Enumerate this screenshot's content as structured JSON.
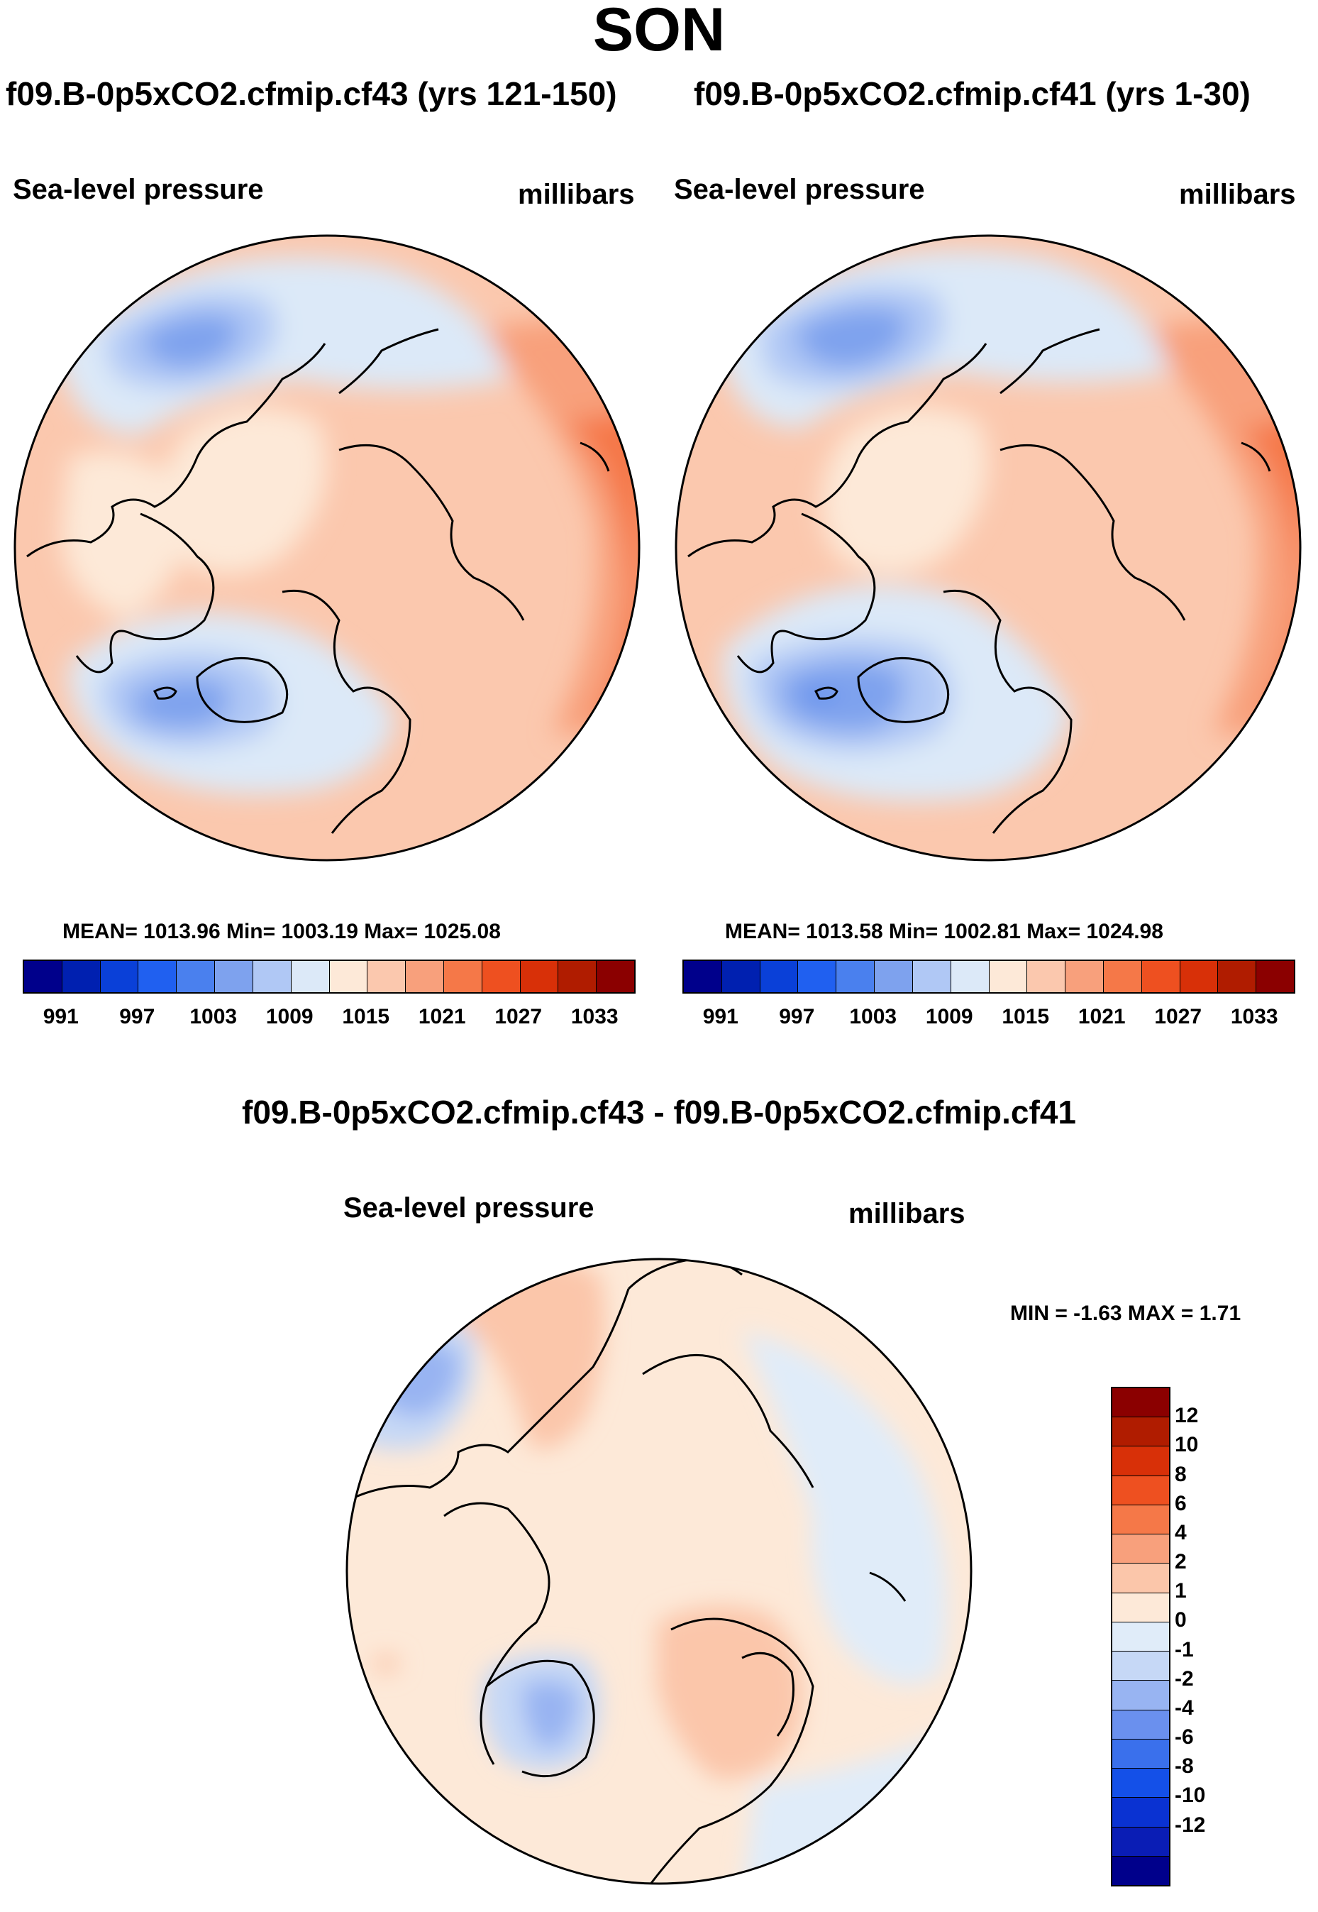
{
  "page": {
    "title": "SON"
  },
  "panels": [
    {
      "case_title": "f09.B-0p5xCO2.cfmip.cf43 (yrs 121-150)",
      "variable": "Sea-level pressure",
      "units": "millibars",
      "stats": "MEAN= 1013.96  Min= 1003.19  Max= 1025.08"
    },
    {
      "case_title": "f09.B-0p5xCO2.cfmip.cf41 (yrs 1-30)",
      "variable": "Sea-level pressure",
      "units": "millibars",
      "stats": "MEAN= 1013.58  Min= 1002.81  Max= 1024.98"
    }
  ],
  "diff_panel": {
    "case_title": "f09.B-0p5xCO2.cfmip.cf43 - f09.B-0p5xCO2.cfmip.cf41",
    "variable": "Sea-level pressure",
    "units": "millibars",
    "stats": "MIN =  -1.63 MAX =   1.71"
  },
  "colorbar_abs": {
    "colors": [
      "#00008b",
      "#0020b0",
      "#0a40d8",
      "#2060f0",
      "#4a80ee",
      "#7ea2ee",
      "#b0c8f5",
      "#dce9f8",
      "#fde9d8",
      "#fbc8ae",
      "#f8a07c",
      "#f57848",
      "#ee5020",
      "#d83008",
      "#b01c00",
      "#8b0000"
    ],
    "labels": [
      "991",
      "997",
      "1003",
      "1009",
      "1015",
      "1021",
      "1027",
      "1033"
    ]
  },
  "colorbar_diff": {
    "colors": [
      "#00008b",
      "#0a1db5",
      "#0a32d2",
      "#1450e8",
      "#3a70ec",
      "#6a90ee",
      "#98b4f2",
      "#c6d8f6",
      "#e0ecf9",
      "#fde9d8",
      "#fbc6aa",
      "#f8a07c",
      "#f57848",
      "#ee5020",
      "#d83008",
      "#b01c00",
      "#8b0000"
    ],
    "labels": [
      "12",
      "10",
      "8",
      "6",
      "4",
      "2",
      "1",
      "0",
      "-1",
      "-2",
      "-4",
      "-6",
      "-8",
      "-10",
      "-12"
    ]
  },
  "map_colors": {
    "land_outline": "#000000",
    "abs_high": "#f57848",
    "abs_mid": "#f8a07c",
    "abs_low_pos": "#fbc8ae",
    "abs_neutral": "#fde9d8",
    "abs_low1": "#dce9f8",
    "abs_low2": "#b0c8f5",
    "abs_low3": "#7ea2ee",
    "abs_low4": "#4a80ee",
    "diff_pos1": "#fde9d8",
    "diff_pos2": "#fbc6aa",
    "diff_neg1": "#e0ecf9",
    "diff_neg2": "#c6d8f6",
    "diff_neg3": "#98b4f2"
  }
}
